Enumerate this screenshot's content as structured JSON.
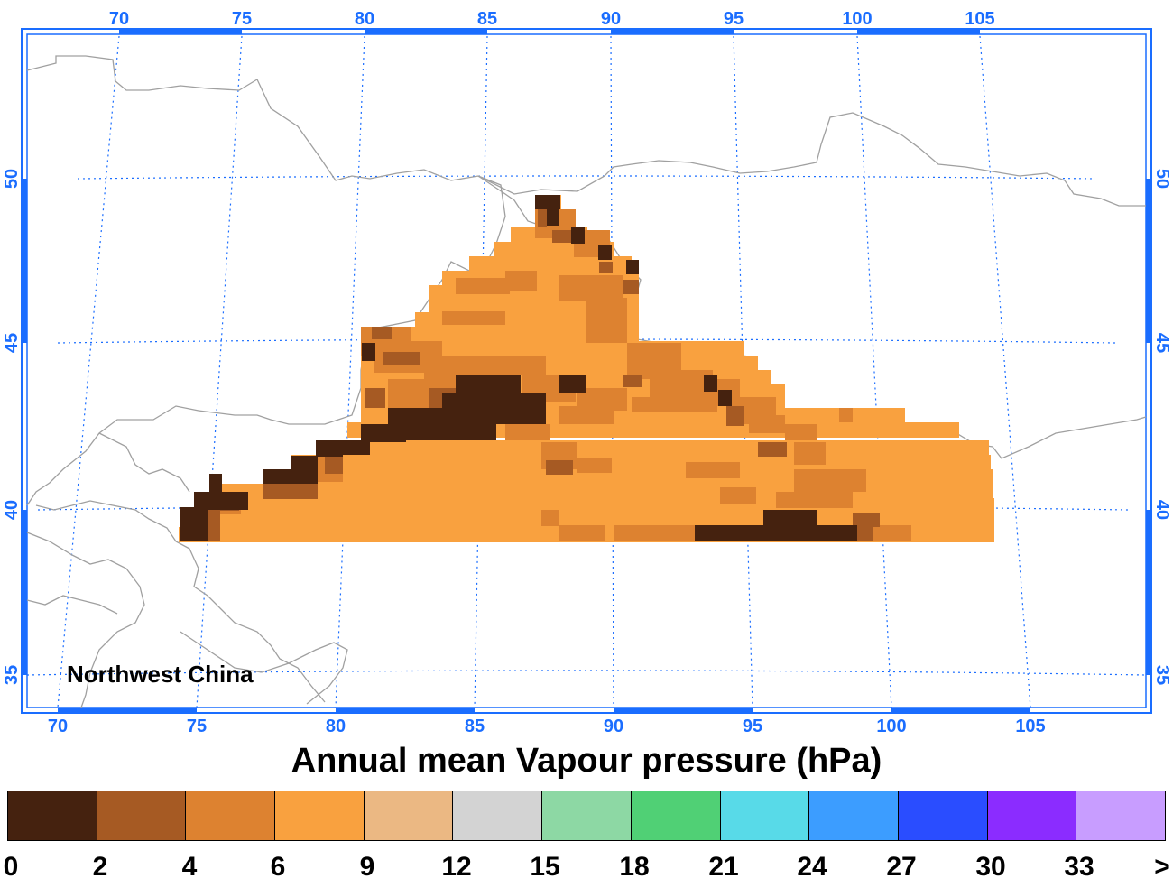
{
  "map": {
    "region_label": "Northwest China",
    "grid_color": "#1a6dff",
    "coast_color": "#a0a0a0",
    "lon_top_ticks": [
      "70",
      "75",
      "80",
      "85",
      "90",
      "95",
      "100",
      "105"
    ],
    "lon_bottom_ticks": [
      "70",
      "75",
      "80",
      "85",
      "90",
      "95",
      "100",
      "105"
    ],
    "lat_ticks": [
      "35",
      "40",
      "45",
      "50"
    ]
  },
  "title": "Annual mean Vapour pressure (hPa)",
  "colorbar": {
    "colors": [
      "#45220f",
      "#a65a23",
      "#dd8230",
      "#f9a13f",
      "#ebb883",
      "#d3d3d3",
      "#8dd8a4",
      "#50d075",
      "#58dae8",
      "#3c9dff",
      "#2a4dff",
      "#8b2cff",
      "#c89dff"
    ],
    "labels": [
      "0",
      "2",
      "4",
      "6",
      "9",
      "12",
      "15",
      "18",
      "21",
      "24",
      "27",
      "30",
      "33",
      ">"
    ]
  }
}
